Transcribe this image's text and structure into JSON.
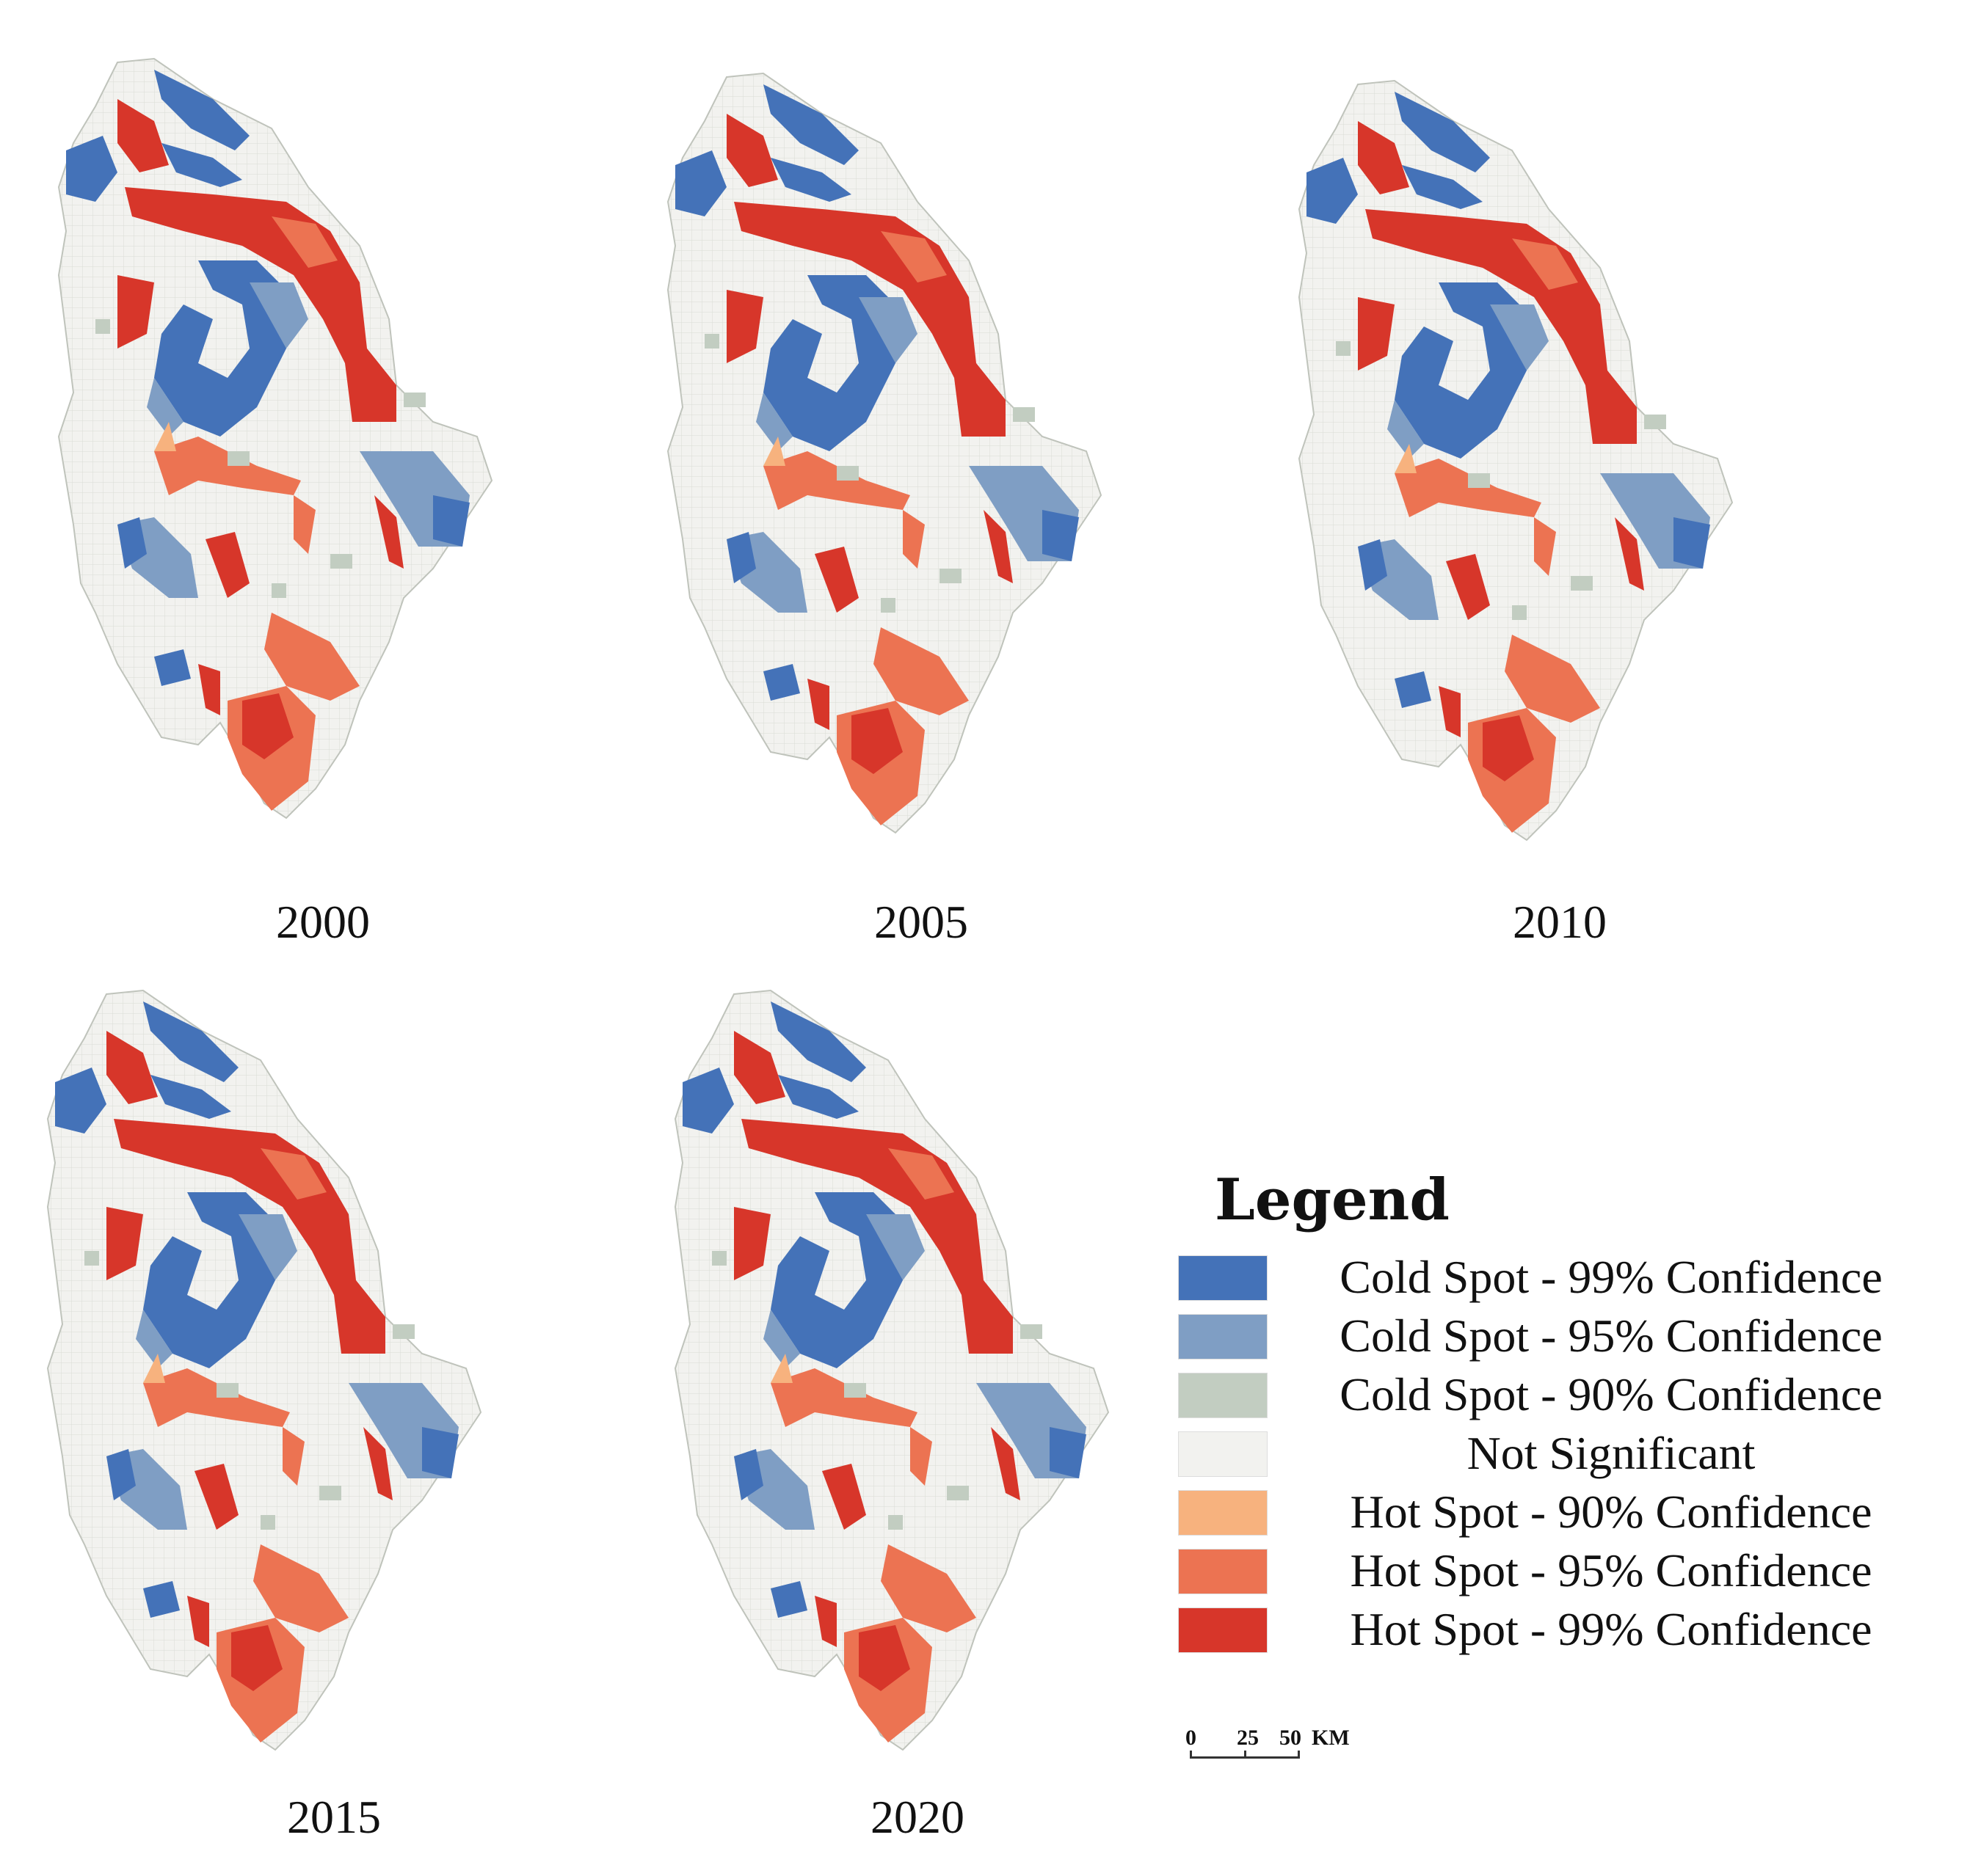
{
  "maps": [
    {
      "year": "2000"
    },
    {
      "year": "2005"
    },
    {
      "year": "2010"
    },
    {
      "year": "2015"
    },
    {
      "year": "2020"
    }
  ],
  "legend": {
    "title": "Legend",
    "items": [
      {
        "label": "Cold Spot - 99% Confidence",
        "color": "#4472b8"
      },
      {
        "label": "Cold Spot - 95% Confidence",
        "color": "#7f9ec4"
      },
      {
        "label": "Cold Spot - 90% Confidence",
        "color": "#c2cdc1"
      },
      {
        "label": "Not Significant",
        "color": "#f2f2ef"
      },
      {
        "label": "Hot Spot - 90% Confidence",
        "color": "#f7b27e"
      },
      {
        "label": "Hot Spot - 95% Confidence",
        "color": "#ec7352"
      },
      {
        "label": "Hot Spot - 99% Confidence",
        "color": "#d7362a"
      }
    ]
  },
  "scale_bar": {
    "t0": "0",
    "t1": "25",
    "t2": "50",
    "unit": "KM"
  }
}
